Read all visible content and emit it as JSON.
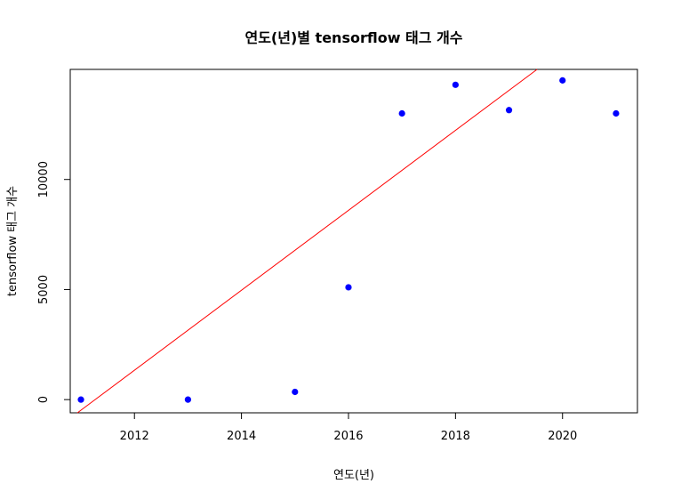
{
  "chart_data": {
    "type": "scatter",
    "title": "연도(년)별 tensorflow 태그 개수",
    "xlabel": "연도(년)",
    "ylabel": "tensorflow 태그 개수",
    "xlim": [
      2010.8,
      2021.4
    ],
    "ylim": [
      -600,
      15000
    ],
    "x_ticks": [
      2012,
      2014,
      2016,
      2018,
      2020
    ],
    "y_ticks": [
      0,
      5000,
      10000
    ],
    "points": [
      {
        "x": 2011,
        "y": 0
      },
      {
        "x": 2013,
        "y": 0
      },
      {
        "x": 2015,
        "y": 350
      },
      {
        "x": 2016,
        "y": 5100
      },
      {
        "x": 2017,
        "y": 13000
      },
      {
        "x": 2018,
        "y": 14300
      },
      {
        "x": 2019,
        "y": 13150
      },
      {
        "x": 2020,
        "y": 14500
      },
      {
        "x": 2021,
        "y": 13000
      }
    ],
    "regression_line": {
      "slope": 1816.1,
      "intercept": -3652658
    },
    "point_color": "#0000ff",
    "line_color": "#ff0000",
    "grid": false
  }
}
